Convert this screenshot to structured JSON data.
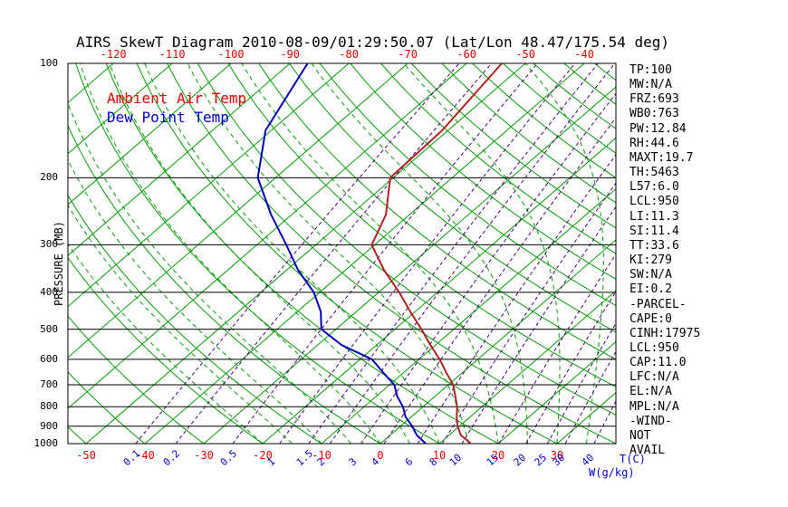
{
  "title": "AIRS SkewT Diagram 2010-08-09/01:29:50.07 (Lat/Lon 48.47/175.54 deg)",
  "legend": {
    "temp": "Ambient Air Temp",
    "dewpoint": "Dew Point Temp"
  },
  "axes": {
    "pressure_label": "PRESSURE (MB)",
    "pressure_ticks_mb": [
      100,
      200,
      300,
      400,
      500,
      600,
      700,
      800,
      900,
      1000
    ],
    "top_temp_ticks_c": [
      -120,
      -110,
      -100,
      -90,
      -80,
      -70,
      -60,
      -50,
      -40
    ],
    "bottom_temp_ticks_c": [
      -50,
      -40,
      -30,
      -20,
      -10,
      0,
      10,
      20,
      30
    ],
    "mixing_ratio_ticks_g_kg": [
      0.1,
      0.2,
      0.5,
      1,
      1.5,
      2,
      3,
      4,
      6,
      8,
      10,
      15,
      20,
      25,
      30,
      40
    ],
    "temp_unit_label": "T(C)",
    "mixing_unit_label": "W(g/kg)"
  },
  "stats_panel": {
    "lines": [
      "TP:100",
      "MW:N/A",
      "FRZ:693",
      "WB0:763",
      "PW:12.84",
      "RH:44.6",
      "MAXT:19.7",
      "TH:5463",
      "L57:6.0",
      "LCL:950",
      "LI:11.3",
      "SI:11.4",
      "TT:33.6",
      "KI:279",
      "SW:N/A",
      "EI:0.2",
      "-PARCEL-",
      "CAPE:0",
      "CINH:17975",
      "LCL:950",
      "CAP:11.0",
      "LFC:N/A",
      "EL:N/A",
      "MPL:N/A",
      "-WIND-",
      "NOT",
      "AVAIL"
    ]
  },
  "colors": {
    "grid_green": "#00a000",
    "mixing_purple": "#4b0082",
    "temp_red": "#b22222",
    "dewpoint_blue": "#0000bb",
    "tick_red": "#e80000",
    "tick_blue": "#0000dd",
    "pressure_black": "#000000"
  },
  "chart_data": {
    "type": "line",
    "variant": "skew-t-log-p",
    "title": "AIRS SkewT Diagram 2010-08-09/01:29:50.07 (Lat/Lon 48.47/175.54 deg)",
    "xlabel": "T(C)",
    "ylabel": "PRESSURE (MB)",
    "y_axis": {
      "scale": "log",
      "range_mb": [
        100,
        1000
      ]
    },
    "x_axis": {
      "bottom_tick_range_c": [
        -50,
        30
      ],
      "top_tick_range_c": [
        -120,
        -40
      ]
    },
    "legend_position": "upper-left-inside",
    "series": [
      {
        "name": "Ambient Air Temp",
        "color": "#b22222",
        "points_p_t": [
          [
            100,
            -54
          ],
          [
            150,
            -51
          ],
          [
            200,
            -50.5
          ],
          [
            250,
            -44
          ],
          [
            300,
            -40.5
          ],
          [
            350,
            -33.4
          ],
          [
            400,
            -26.5
          ],
          [
            450,
            -20.8
          ],
          [
            500,
            -15.5
          ],
          [
            550,
            -10.9
          ],
          [
            600,
            -6.5
          ],
          [
            650,
            -2.8
          ],
          [
            700,
            0.8
          ],
          [
            750,
            3.4
          ],
          [
            800,
            5.8
          ],
          [
            850,
            7.7
          ],
          [
            900,
            9.7
          ],
          [
            950,
            12.0
          ],
          [
            1000,
            15.4
          ]
        ]
      },
      {
        "name": "Dew Point Temp",
        "color": "#0000bb",
        "points_p_t": [
          [
            100,
            -87
          ],
          [
            150,
            -81
          ],
          [
            200,
            -73
          ],
          [
            250,
            -63.5
          ],
          [
            300,
            -55
          ],
          [
            350,
            -48
          ],
          [
            400,
            -41
          ],
          [
            450,
            -36
          ],
          [
            500,
            -32.5
          ],
          [
            550,
            -26
          ],
          [
            600,
            -18
          ],
          [
            650,
            -13.5
          ],
          [
            700,
            -9.2
          ],
          [
            750,
            -6.5
          ],
          [
            800,
            -3.4
          ],
          [
            850,
            -1.0
          ],
          [
            900,
            2.0
          ],
          [
            950,
            4.5
          ],
          [
            1000,
            7.7
          ]
        ]
      }
    ],
    "background_lines": {
      "pressure_lines_mb": [
        100,
        200,
        300,
        400,
        500,
        600,
        700,
        800,
        900,
        1000
      ],
      "isotherms_c": [
        -130,
        -120,
        -110,
        -100,
        -90,
        -80,
        -70,
        -60,
        -50,
        -40,
        -30,
        -20,
        -10,
        0,
        10,
        20,
        30,
        40
      ],
      "dry_adiabats_c": [
        -50,
        -40,
        -30,
        -20,
        -10,
        0,
        10,
        20,
        30,
        40,
        50,
        60,
        70,
        80,
        90,
        100,
        110,
        120,
        130,
        140,
        150,
        160,
        170,
        180
      ],
      "moist_adiabats_c": [
        -20,
        -15,
        -10,
        -5,
        0,
        5,
        10,
        15,
        20,
        25,
        30,
        35,
        40
      ],
      "mixing_ratio_g_kg": [
        0.1,
        0.2,
        0.5,
        1,
        1.5,
        2,
        3,
        4,
        6,
        8,
        10,
        15,
        20,
        25,
        30,
        40
      ]
    }
  }
}
